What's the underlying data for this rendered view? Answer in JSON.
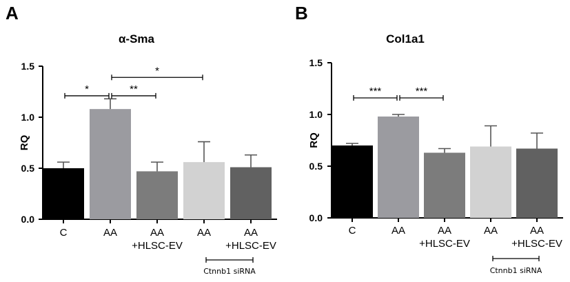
{
  "chart_data": [
    {
      "type": "bar",
      "panel_label": "A",
      "title": "α-Sma",
      "xlabel": "",
      "ylabel": "RQ",
      "ylim": [
        0,
        1.5
      ],
      "yticks": [
        0.0,
        0.5,
        1.0,
        1.5
      ],
      "ytick_labels": [
        "0.0",
        "0.5",
        "1.0",
        "1.5"
      ],
      "categories": [
        {
          "line1": "C",
          "line2": ""
        },
        {
          "line1": "AA",
          "line2": ""
        },
        {
          "line1": "AA",
          "line2": "+HLSC-EV"
        },
        {
          "line1": "AA",
          "line2": ""
        },
        {
          "line1": "AA",
          "line2": "+HLSC-EV"
        }
      ],
      "values": [
        0.5,
        1.08,
        0.47,
        0.56,
        0.51
      ],
      "errors": [
        0.06,
        0.1,
        0.09,
        0.2,
        0.12
      ],
      "colors": [
        "#000000",
        "#9b9ba0",
        "#7c7c7c",
        "#d2d2d2",
        "#616161"
      ],
      "significance": [
        {
          "from": 0,
          "to": 1,
          "label": "*",
          "y": 1.21
        },
        {
          "from": 1,
          "to": 2,
          "label": "**",
          "y": 1.21
        },
        {
          "from": 1,
          "to": 3,
          "label": "*",
          "y": 1.39
        }
      ],
      "group_label": {
        "text": "Ctnnb1 siRNA",
        "from": 3,
        "to": 4
      }
    },
    {
      "type": "bar",
      "panel_label": "B",
      "title": "Col1a1",
      "xlabel": "",
      "ylabel": "RQ",
      "ylim": [
        0,
        1.5
      ],
      "yticks": [
        0.0,
        0.5,
        1.0,
        1.5
      ],
      "ytick_labels": [
        "0.0",
        "0.5",
        "1.0",
        "1.5"
      ],
      "categories": [
        {
          "line1": "C",
          "line2": ""
        },
        {
          "line1": "AA",
          "line2": ""
        },
        {
          "line1": "AA",
          "line2": "+HLSC-EV"
        },
        {
          "line1": "AA",
          "line2": ""
        },
        {
          "line1": "AA",
          "line2": "+HLSC-EV"
        }
      ],
      "values": [
        0.7,
        0.98,
        0.63,
        0.69,
        0.67
      ],
      "errors": [
        0.02,
        0.02,
        0.04,
        0.2,
        0.15
      ],
      "colors": [
        "#000000",
        "#9b9ba0",
        "#7c7c7c",
        "#d2d2d2",
        "#616161"
      ],
      "significance": [
        {
          "from": 0,
          "to": 1,
          "label": "***",
          "y": 1.16
        },
        {
          "from": 1,
          "to": 2,
          "label": "***",
          "y": 1.16
        }
      ],
      "group_label": {
        "text": "Ctnnb1 siRNA",
        "from": 3,
        "to": 4
      }
    }
  ]
}
